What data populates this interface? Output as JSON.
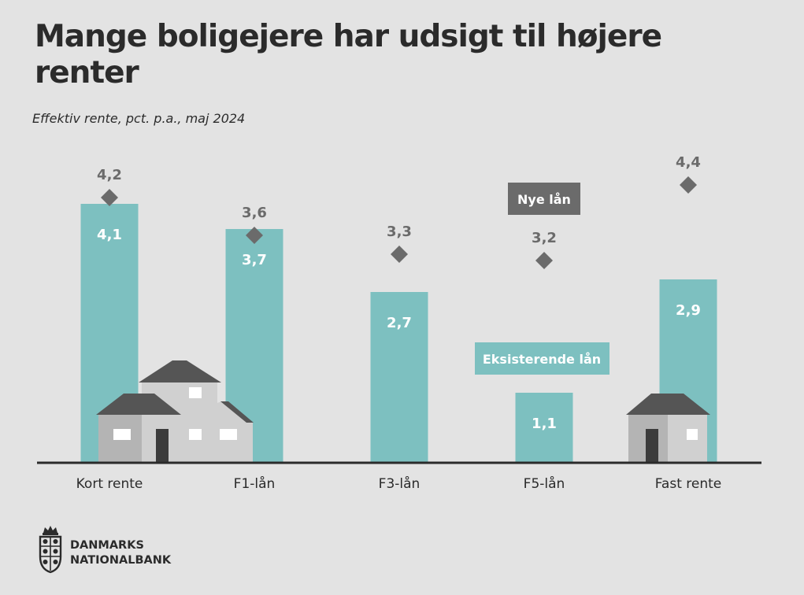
{
  "header": {
    "title": "Mange boligejere har udsigt til højere renter",
    "subtitle": "Effektiv rente, pct. p.a., maj 2024"
  },
  "chart_data": {
    "type": "bar",
    "categories": [
      "Kort rente",
      "F1-lån",
      "F3-lån",
      "F5-lån",
      "Fast rente"
    ],
    "series": [
      {
        "name": "Eksisterende lån",
        "kind": "bar",
        "color": "#7dc0c0",
        "values": [
          4.1,
          3.7,
          2.7,
          1.1,
          2.9
        ],
        "labels": [
          "4,1",
          "3,7",
          "2,7",
          "1,1",
          "2,9"
        ]
      },
      {
        "name": "Nye lån",
        "kind": "marker",
        "marker": "diamond",
        "color": "#6b6b6b",
        "values": [
          4.2,
          3.6,
          3.3,
          3.2,
          4.4
        ],
        "labels": [
          "4,2",
          "3,6",
          "3,3",
          "3,2",
          "4,4"
        ]
      }
    ],
    "ylim": [
      0,
      5
    ],
    "grid": false,
    "legend": "inline labels"
  },
  "logo": {
    "line1": "DANMARKS",
    "line2": "NATIONALBANK"
  },
  "colors": {
    "background": "#e3e3e3",
    "bar": "#7dc0c0",
    "marker": "#6b6b6b",
    "text": "#2b2b2b",
    "house_wall": "#d0d0d0",
    "house_wall_shade": "#b4b4b4",
    "house_roof": "#555555"
  }
}
